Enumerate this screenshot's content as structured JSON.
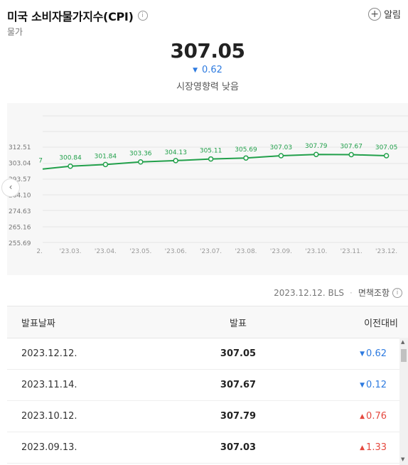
{
  "header": {
    "title": "미국 소비자물가지수(CPI)",
    "subtitle": "물가",
    "info_icon_glyph": "i",
    "alarm_label": "알림",
    "alarm_icon_glyph": "+"
  },
  "summary": {
    "value": "307.05",
    "change_arrow": "▼",
    "change": "0.62",
    "impact": "시장영향력 낮음"
  },
  "chart_data": {
    "type": "line",
    "x_labels": [
      "'23.03.",
      "'23.04.",
      "'23.05.",
      "'23.06.",
      "'23.07.",
      "'23.08.",
      "'23.09.",
      "'23.10.",
      "'23.11.",
      "'23.12."
    ],
    "point_labels": [
      "300.84",
      "301.84",
      "303.36",
      "304.13",
      "305.11",
      "305.69",
      "307.03",
      "307.79",
      "307.67",
      "307.05"
    ],
    "values": [
      300.84,
      301.84,
      303.36,
      304.13,
      305.11,
      305.69,
      307.03,
      307.79,
      307.67,
      307.05
    ],
    "clipped_left": {
      "x_label": "2.",
      "point_label": "7",
      "value": 299.17
    },
    "y_ticks": [
      "312.51",
      "303.04",
      "293.57",
      "284.10",
      "274.63",
      "265.16",
      "255.69"
    ],
    "y_tick_values": [
      312.51,
      303.04,
      293.57,
      284.1,
      274.63,
      265.16,
      255.69
    ],
    "ylim": [
      255.69,
      312.51
    ],
    "line_color": "#22a04b",
    "grid": true
  },
  "chart_nav": {
    "prev_glyph": "‹"
  },
  "source": {
    "text": "2023.12.12. BLS",
    "separator": "·",
    "disclaimer": "면책조항",
    "disclaimer_icon_glyph": "i"
  },
  "table": {
    "headers": {
      "date": "발표날짜",
      "value": "발표",
      "diff": "이전대비"
    },
    "rows": [
      {
        "date": "2023.12.12.",
        "value": "307.05",
        "arrow": "▼",
        "diff": "0.62",
        "dir": "down"
      },
      {
        "date": "2023.11.14.",
        "value": "307.67",
        "arrow": "▼",
        "diff": "0.12",
        "dir": "down"
      },
      {
        "date": "2023.10.12.",
        "value": "307.79",
        "arrow": "▲",
        "diff": "0.76",
        "dir": "up"
      },
      {
        "date": "2023.09.13.",
        "value": "307.03",
        "arrow": "▲",
        "diff": "1.33",
        "dir": "up"
      }
    ]
  },
  "colors": {
    "up": "#e5493f",
    "down": "#2e7be0",
    "line": "#22a04b"
  }
}
